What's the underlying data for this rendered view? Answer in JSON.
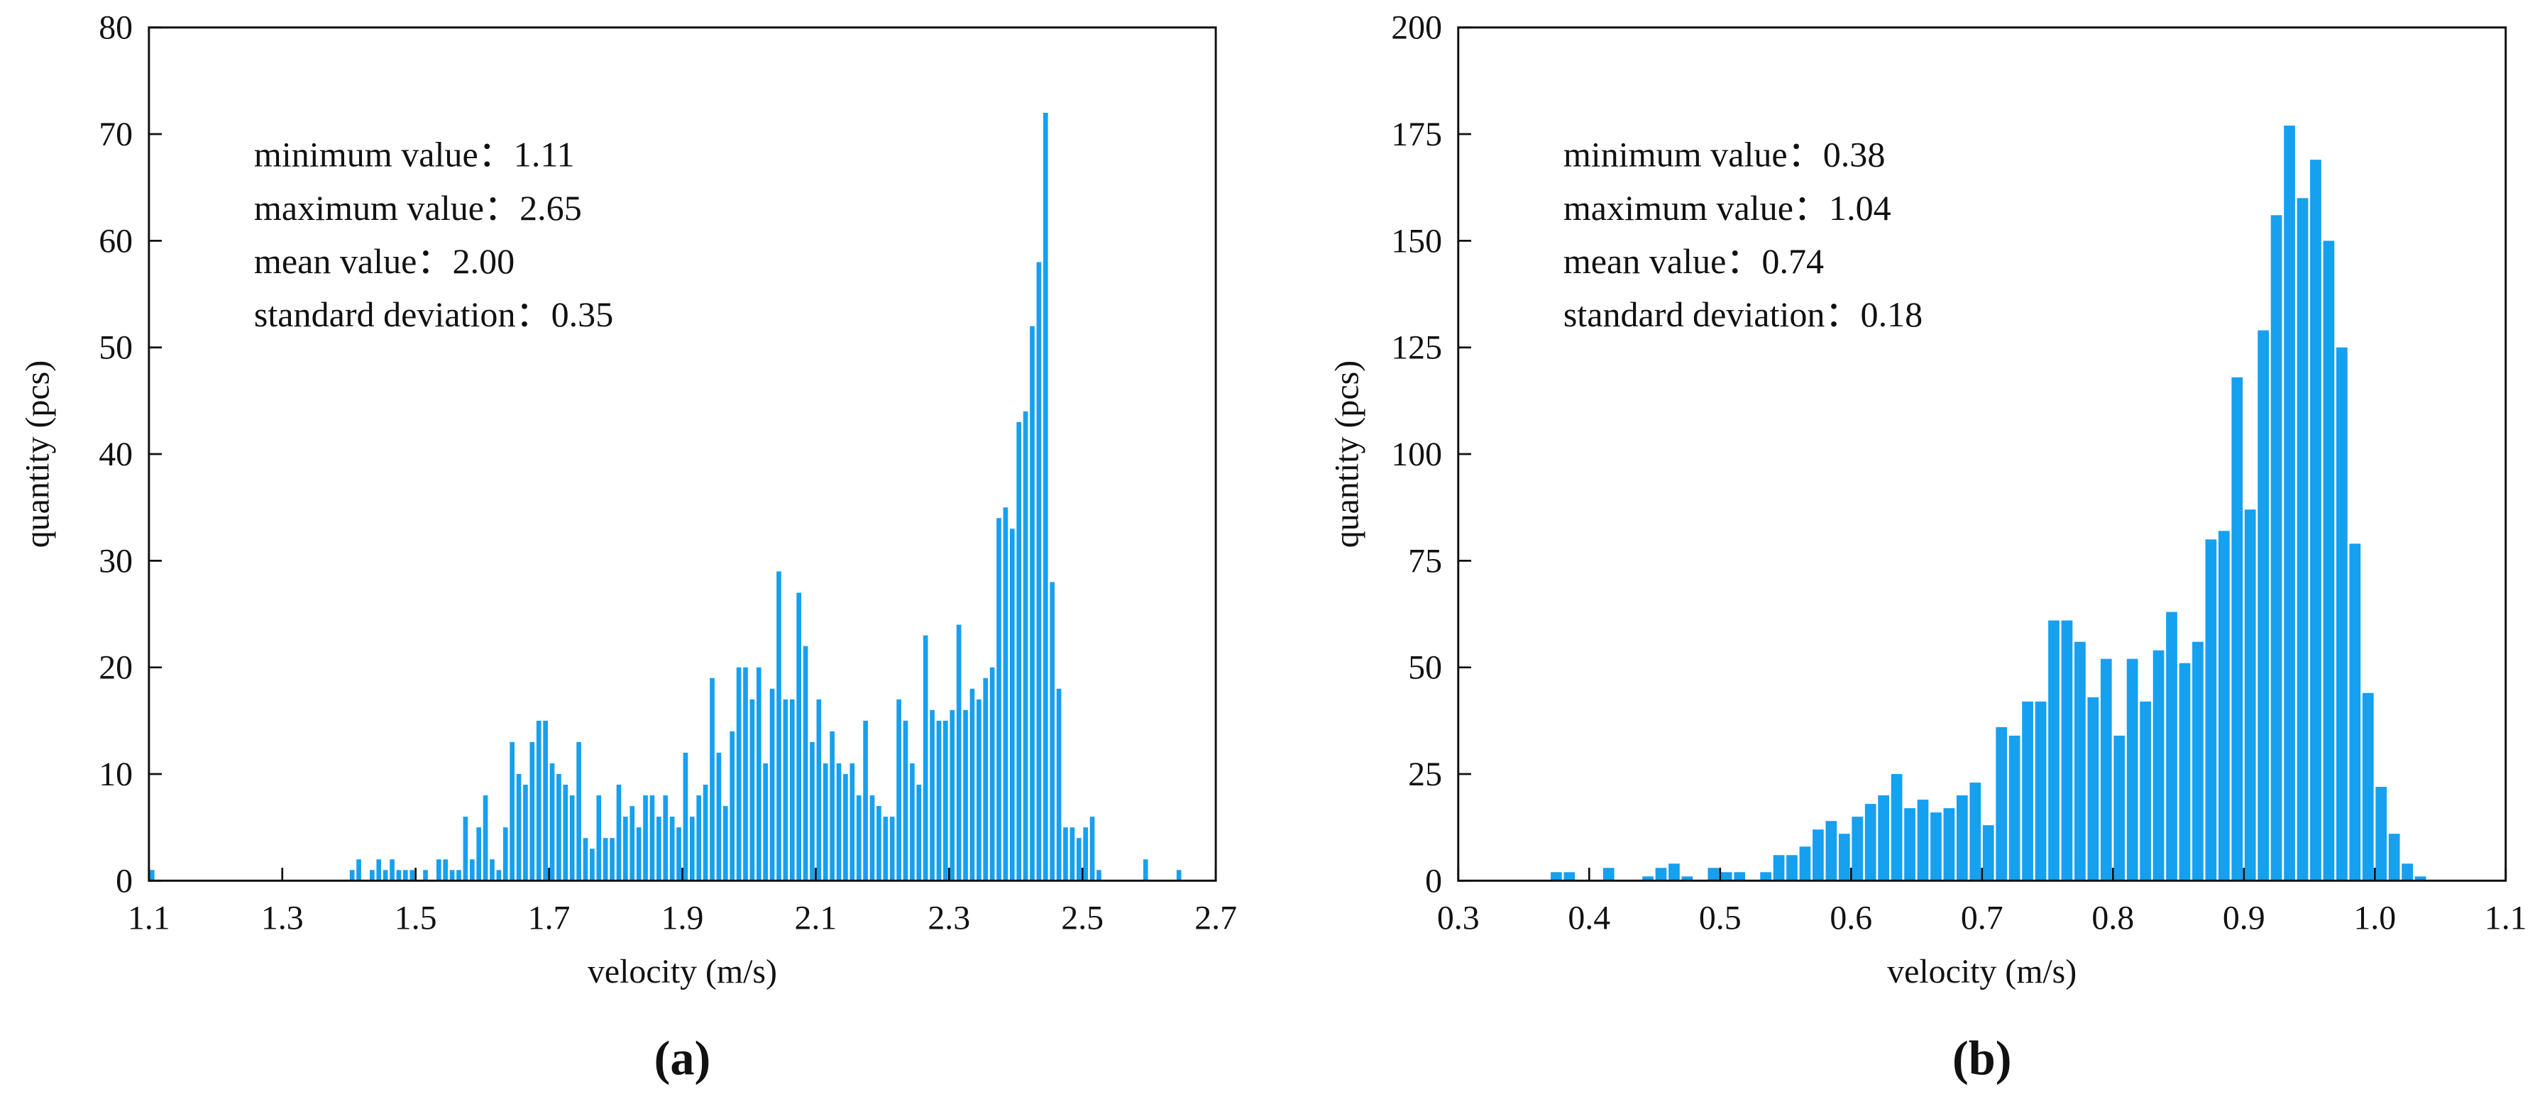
{
  "chart_data": [
    {
      "type": "histogram",
      "panel_label": "(a)",
      "xlabel": "velocity (m/s)",
      "ylabel": "quantity (pcs)",
      "color": "#16a0f0",
      "annotations": [
        "minimum value：1.11",
        "maximum value：2.65",
        "mean value：2.00",
        "standard deviation：0.35"
      ],
      "xlim": [
        1.1,
        2.7
      ],
      "ylim": [
        0,
        80
      ],
      "xticks": [
        1.1,
        1.3,
        1.5,
        1.7,
        1.9,
        2.1,
        2.3,
        2.5,
        2.7
      ],
      "yticks": [
        0,
        10,
        20,
        30,
        40,
        50,
        60,
        70,
        80
      ],
      "bins": [
        1.1,
        1.11,
        1.12,
        1.13,
        1.14,
        1.15,
        1.16,
        1.17,
        1.18,
        1.19,
        1.2,
        1.21,
        1.22,
        1.23,
        1.24,
        1.25,
        1.26,
        1.27,
        1.28,
        1.29,
        1.3,
        1.31,
        1.32,
        1.33,
        1.34,
        1.35,
        1.36,
        1.37,
        1.38,
        1.39,
        1.4,
        1.41,
        1.42,
        1.43,
        1.44,
        1.45,
        1.46,
        1.47,
        1.48,
        1.49,
        1.5,
        1.51,
        1.52,
        1.53,
        1.54,
        1.55,
        1.56,
        1.57,
        1.58,
        1.59,
        1.6,
        1.61,
        1.62,
        1.63,
        1.64,
        1.65,
        1.66,
        1.67,
        1.68,
        1.69,
        1.7,
        1.71,
        1.72,
        1.73,
        1.74,
        1.75,
        1.76,
        1.77,
        1.78,
        1.79,
        1.8,
        1.81,
        1.82,
        1.83,
        1.84,
        1.85,
        1.86,
        1.87,
        1.88,
        1.89,
        1.9,
        1.91,
        1.92,
        1.93,
        1.94,
        1.95,
        1.96,
        1.97,
        1.98,
        1.99,
        2.0,
        2.01,
        2.02,
        2.03,
        2.04,
        2.05,
        2.06,
        2.07,
        2.08,
        2.09,
        2.1,
        2.11,
        2.12,
        2.13,
        2.14,
        2.15,
        2.16,
        2.17,
        2.18,
        2.19,
        2.2,
        2.21,
        2.22,
        2.23,
        2.24,
        2.25,
        2.26,
        2.27,
        2.28,
        2.29,
        2.3,
        2.31,
        2.32,
        2.33,
        2.34,
        2.35,
        2.36,
        2.37,
        2.38,
        2.39,
        2.4,
        2.41,
        2.42,
        2.43,
        2.44,
        2.45,
        2.46,
        2.47,
        2.48,
        2.49,
        2.5,
        2.51,
        2.52,
        2.53,
        2.54,
        2.55,
        2.56,
        2.57,
        2.58,
        2.59,
        2.6,
        2.61,
        2.62,
        2.63,
        2.64,
        2.65,
        2.66
      ],
      "counts": [
        1,
        0,
        0,
        0,
        0,
        0,
        0,
        0,
        0,
        0,
        0,
        0,
        0,
        0,
        0,
        0,
        0,
        0,
        0,
        0,
        0,
        0,
        0,
        0,
        0,
        0,
        0,
        0,
        0,
        0,
        1,
        2,
        0,
        1,
        2,
        1,
        2,
        1,
        1,
        1,
        0,
        1,
        0,
        2,
        2,
        1,
        1,
        6,
        2,
        5,
        8,
        2,
        1,
        5,
        13,
        10,
        9,
        13,
        15,
        15,
        11,
        10,
        9,
        8,
        13,
        4,
        3,
        8,
        4,
        4,
        9,
        6,
        7,
        5,
        8,
        8,
        6,
        8,
        6,
        5,
        12,
        6,
        8,
        9,
        19,
        12,
        7,
        14,
        20,
        20,
        17,
        20,
        11,
        18,
        29,
        17,
        17,
        27,
        22,
        13,
        17,
        11,
        14,
        11,
        10,
        11,
        8,
        15,
        8,
        7,
        6,
        6,
        17,
        15,
        11,
        9,
        23,
        16,
        15,
        15,
        16,
        24,
        16,
        18,
        17,
        19,
        20,
        34,
        35,
        33,
        43,
        44,
        52,
        58,
        72,
        28,
        18,
        5,
        5,
        4,
        5,
        6,
        1,
        0,
        0,
        0,
        0,
        0,
        0,
        2,
        0,
        0,
        0,
        0,
        1,
        0
      ]
    },
    {
      "type": "histogram",
      "panel_label": "(b)",
      "xlabel": "velocity (m/s)",
      "ylabel": "quantity (pcs)",
      "color": "#16a0f0",
      "annotations": [
        "minimum value：0.38",
        "maximum value：1.04",
        "mean value：0.74",
        "standard deviation：0.18"
      ],
      "xlim": [
        0.3,
        1.1
      ],
      "ylim": [
        0,
        200
      ],
      "xticks": [
        0.3,
        0.4,
        0.5,
        0.6,
        0.7,
        0.8,
        0.9,
        {
          "value": 1,
          "label": "1.0"
        },
        1.1
      ],
      "yticks": [
        0,
        25,
        50,
        75,
        100,
        125,
        150,
        175,
        200
      ],
      "bins": [
        0.37,
        0.38,
        0.39,
        0.4,
        0.41,
        0.42,
        0.43,
        0.44,
        0.45,
        0.46,
        0.47,
        0.48,
        0.49,
        0.5,
        0.51,
        0.52,
        0.53,
        0.54,
        0.55,
        0.56,
        0.57,
        0.58,
        0.59,
        0.6,
        0.61,
        0.62,
        0.63,
        0.64,
        0.65,
        0.66,
        0.67,
        0.68,
        0.69,
        0.7,
        0.71,
        0.72,
        0.73,
        0.74,
        0.75,
        0.76,
        0.77,
        0.78,
        0.79,
        0.8,
        0.81,
        0.82,
        0.83,
        0.84,
        0.85,
        0.86,
        0.87,
        0.88,
        0.89,
        0.9,
        0.91,
        0.92,
        0.93,
        0.94,
        0.95,
        0.96,
        0.97,
        0.98,
        0.99,
        1.0,
        1.01,
        1.02,
        1.03,
        1.04
      ],
      "counts": [
        2,
        2,
        0,
        0,
        3,
        0,
        0,
        1,
        3,
        4,
        1,
        0,
        3,
        2,
        2,
        0,
        2,
        6,
        6,
        8,
        12,
        14,
        11,
        15,
        18,
        20,
        25,
        17,
        19,
        16,
        17,
        20,
        23,
        13,
        36,
        34,
        42,
        42,
        61,
        61,
        56,
        43,
        52,
        34,
        52,
        42,
        54,
        63,
        51,
        56,
        80,
        82,
        118,
        87,
        129,
        156,
        177,
        160,
        169,
        150,
        125,
        79,
        44,
        22,
        11,
        4,
        1
      ]
    }
  ]
}
